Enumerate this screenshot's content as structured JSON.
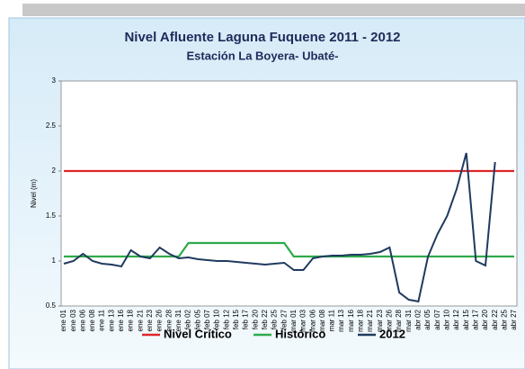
{
  "chart_data": {
    "type": "line",
    "title": "Nivel Afluente Laguna Fuquene 2011 - 2012",
    "subtitle": "Estación La Boyera- Ubaté-",
    "y_label": "Nivel (m)",
    "categories": [
      "ene 01",
      "ene 03",
      "ene 06",
      "ene 08",
      "ene 11",
      "ene 13",
      "ene 16",
      "ene 18",
      "ene 21",
      "ene 23",
      "ene 26",
      "ene 28",
      "ene 31",
      "feb 02",
      "feb 05",
      "feb 07",
      "feb 10",
      "feb 12",
      "feb 15",
      "feb 17",
      "feb 20",
      "feb 22",
      "feb 25",
      "feb 27",
      "mar 01",
      "mar 03",
      "mar 06",
      "mar 08",
      "mar 11",
      "mar 13",
      "mar 16",
      "mar 18",
      "mar 21",
      "mar 23",
      "mar 26",
      "mar 28",
      "mar 31",
      "abr 02",
      "abr 05",
      "abr 07",
      "abr 10",
      "abr 12",
      "abr 15",
      "abr 17",
      "abr 20",
      "abr 22",
      "abr 25",
      "abr 27"
    ],
    "series": [
      {
        "name": "Nivel Crítico",
        "color": "#e0262a",
        "values": [
          2,
          2,
          2,
          2,
          2,
          2,
          2,
          2,
          2,
          2,
          2,
          2,
          2,
          2,
          2,
          2,
          2,
          2,
          2,
          2,
          2,
          2,
          2,
          2,
          2,
          2,
          2,
          2,
          2,
          2,
          2,
          2,
          2,
          2,
          2,
          2,
          2,
          2,
          2,
          2,
          2,
          2,
          2,
          2,
          2,
          2,
          2,
          2
        ]
      },
      {
        "name": "Histórico",
        "color": "#2eaa4a",
        "values": [
          1.05,
          1.05,
          1.05,
          1.05,
          1.05,
          1.05,
          1.05,
          1.05,
          1.05,
          1.05,
          1.05,
          1.05,
          1.05,
          1.2,
          1.2,
          1.2,
          1.2,
          1.2,
          1.2,
          1.2,
          1.2,
          1.2,
          1.2,
          1.2,
          1.05,
          1.05,
          1.05,
          1.05,
          1.05,
          1.05,
          1.05,
          1.05,
          1.05,
          1.05,
          1.05,
          1.05,
          1.05,
          1.05,
          1.05,
          1.05,
          1.05,
          1.05,
          1.05,
          1.05,
          1.05,
          1.05,
          1.05,
          1.05
        ]
      },
      {
        "name": "2012",
        "color": "#1f3a5f",
        "values": [
          0.97,
          1.0,
          1.08,
          1.0,
          0.97,
          0.96,
          0.94,
          1.12,
          1.05,
          1.03,
          1.15,
          1.08,
          1.03,
          1.04,
          1.02,
          1.01,
          1.0,
          1.0,
          0.99,
          0.98,
          0.97,
          0.96,
          0.97,
          0.98,
          0.9,
          0.9,
          1.03,
          1.05,
          1.06,
          1.06,
          1.07,
          1.07,
          1.08,
          1.1,
          1.15,
          0.65,
          0.57,
          0.55,
          1.05,
          1.3,
          1.5,
          1.8,
          2.2,
          1.0,
          0.95,
          2.1,
          null,
          null
        ]
      }
    ],
    "ylim": [
      0.5,
      3
    ],
    "yticks": [
      0.5,
      1,
      1.5,
      2,
      2.5,
      3
    ],
    "grid": false,
    "legend": "bottom"
  }
}
